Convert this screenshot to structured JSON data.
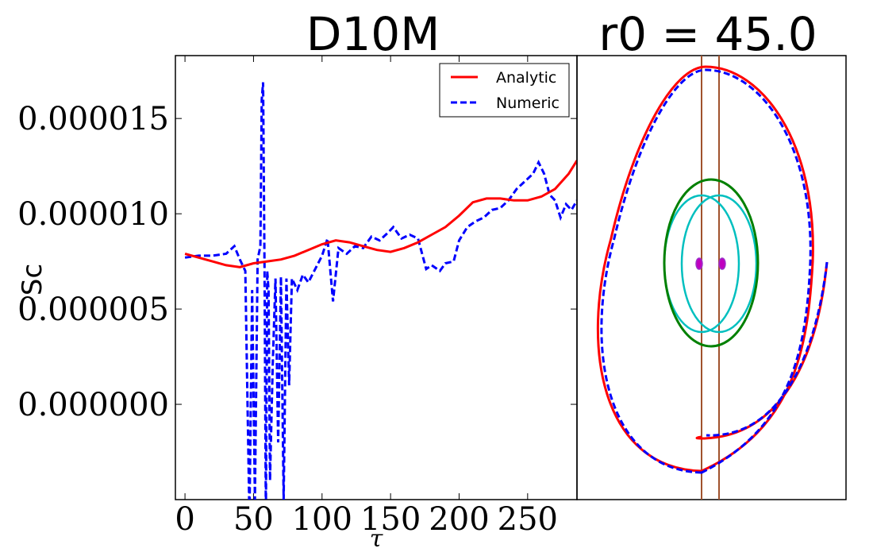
{
  "chart_data": [
    {
      "type": "line",
      "title": "D10M",
      "xlabel": "τ",
      "ylabel": "Sc",
      "xlim": [
        -7,
        286
      ],
      "ylim": [
        -5e-06,
        1.83e-05
      ],
      "xticks": [
        0,
        50,
        100,
        150,
        200,
        250
      ],
      "xtick_labels": [
        "0",
        "50",
        "100",
        "150",
        "200",
        "250"
      ],
      "yticks": [
        0.0,
        5e-06,
        1e-05,
        1.5e-05
      ],
      "ytick_labels": [
        "0.000000",
        "0.000005",
        "0.000010",
        "0.000015"
      ],
      "legend": {
        "position": "top-right",
        "entries": [
          "Analytic",
          "Numeric"
        ]
      },
      "series": [
        {
          "name": "Analytic",
          "color": "#ff0000",
          "style": "solid",
          "x": [
            0,
            10,
            20,
            30,
            40,
            50,
            60,
            70,
            80,
            90,
            100,
            110,
            120,
            130,
            140,
            150,
            160,
            170,
            180,
            190,
            200,
            210,
            220,
            230,
            240,
            250,
            260,
            270,
            280,
            286
          ],
          "y": [
            7.9e-06,
            7.7e-06,
            7.5e-06,
            7.3e-06,
            7.2e-06,
            7.4e-06,
            7.5e-06,
            7.6e-06,
            7.8e-06,
            8.1e-06,
            8.4e-06,
            8.6e-06,
            8.5e-06,
            8.3e-06,
            8.1e-06,
            8e-06,
            8.2e-06,
            8.5e-06,
            8.9e-06,
            9.3e-06,
            9.9e-06,
            1.06e-05,
            1.08e-05,
            1.08e-05,
            1.07e-05,
            1.07e-05,
            1.09e-05,
            1.13e-05,
            1.21e-05,
            1.28e-05
          ]
        },
        {
          "name": "Numeric",
          "color": "#0000ff",
          "style": "dashed",
          "x": [
            0,
            10,
            20,
            30,
            36,
            40,
            44,
            47,
            49,
            51,
            53,
            55,
            56,
            57,
            58,
            59,
            60,
            61,
            62,
            64,
            66,
            68,
            70,
            72,
            74,
            76,
            78,
            82,
            86,
            90,
            95,
            100,
            104,
            108,
            112,
            118,
            124,
            130,
            136,
            142,
            148,
            152,
            158,
            164,
            170,
            176,
            180,
            186,
            190,
            196,
            200,
            206,
            212,
            218,
            224,
            230,
            236,
            242,
            248,
            254,
            258,
            262,
            266,
            270,
            274,
            278,
            282,
            286
          ],
          "y": [
            7.7e-06,
            7.8e-06,
            7.8e-06,
            7.9e-06,
            8.3e-06,
            7.6e-06,
            7e-06,
            -6e-06,
            6e-06,
            -5e-06,
            7.6e-06,
            8.3e-06,
            1.6e-05,
            1.69e-05,
            7.2e-06,
            -6e-06,
            7e-06,
            6e-06,
            -4e-06,
            2e-06,
            6.6e-06,
            -2e-06,
            6.7e-06,
            -5e-06,
            6.6e-06,
            1e-06,
            6.6e-06,
            6e-06,
            6.8e-06,
            6.4e-06,
            7.1e-06,
            7.8e-06,
            8.7e-06,
            5.4e-06,
            8.2e-06,
            7.9e-06,
            8.3e-06,
            8.2e-06,
            8.8e-06,
            8.6e-06,
            9e-06,
            9.3e-06,
            8.7e-06,
            8.9e-06,
            8.7e-06,
            7.1e-06,
            7.3e-06,
            7e-06,
            7.4e-06,
            7.5e-06,
            8.6e-06,
            9.3e-06,
            9.6e-06,
            9.8e-06,
            1.02e-05,
            1.03e-05,
            1.07e-05,
            1.13e-05,
            1.17e-05,
            1.21e-05,
            1.27e-05,
            1.21e-05,
            1.1e-05,
            1.07e-05,
            9.8e-06,
            1.05e-05,
            1.02e-05,
            1.07e-05
          ]
        }
      ]
    },
    {
      "type": "orbit",
      "title": "r0 = 45.0",
      "series": [
        {
          "name": "Analytic orbit",
          "color": "#ff0000",
          "style": "solid"
        },
        {
          "name": "Numeric orbit",
          "color": "#0000ff",
          "style": "dashed"
        },
        {
          "name": "Outer ring",
          "color": "#008000",
          "style": "solid"
        },
        {
          "name": "Inner lobes",
          "color": "#00bfbf",
          "style": "solid"
        },
        {
          "name": "Guide lines",
          "color": "#a0522d",
          "style": "solid"
        },
        {
          "name": "Bodies",
          "color": "#bf00bf",
          "style": "markers"
        }
      ]
    }
  ]
}
